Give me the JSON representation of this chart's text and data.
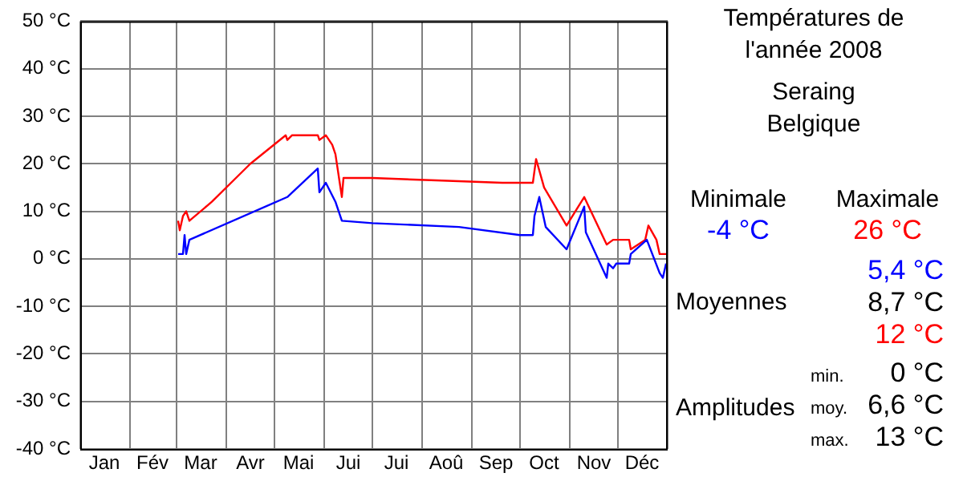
{
  "chart_data": {
    "type": "line",
    "title": "Températures de l'année 2008",
    "subtitle": "Seraing\nBelgique",
    "xlim": [
      "2008-01-01",
      "2009-01-01"
    ],
    "xticks": [
      {
        "value": "2008-01-01",
        "label": null
      },
      {
        "value": "2008-01-16",
        "label": "Jan"
      },
      {
        "value": "2008-02-01",
        "label": null
      },
      {
        "value": "2008-02-15",
        "label": "Fév"
      },
      {
        "value": "2008-03-01",
        "label": null
      },
      {
        "value": "2008-03-16",
        "label": "Mar"
      },
      {
        "value": "2008-04-01",
        "label": null
      },
      {
        "value": "2008-04-16",
        "label": "Avr"
      },
      {
        "value": "2008-05-01",
        "label": null
      },
      {
        "value": "2008-05-16",
        "label": "Mai"
      },
      {
        "value": "2008-06-01",
        "label": null
      },
      {
        "value": "2008-06-16",
        "label": "Jui"
      },
      {
        "value": "2008-07-01",
        "label": null
      },
      {
        "value": "2008-07-16",
        "label": "Jui"
      },
      {
        "value": "2008-08-01",
        "label": null
      },
      {
        "value": "2008-08-16",
        "label": "Aoû"
      },
      {
        "value": "2008-09-01",
        "label": null
      },
      {
        "value": "2008-09-16",
        "label": "Sep"
      },
      {
        "value": "2008-10-01",
        "label": null
      },
      {
        "value": "2008-10-16",
        "label": "Oct"
      },
      {
        "value": "2008-11-01",
        "label": null
      },
      {
        "value": "2008-11-16",
        "label": "Nov"
      },
      {
        "value": "2008-12-01",
        "label": null
      },
      {
        "value": "2008-12-16",
        "label": "Déc"
      },
      {
        "value": "2009-01-01",
        "label": null
      }
    ],
    "ylim": [
      -40,
      50
    ],
    "yticks": [
      {
        "value": -40,
        "label": "-40 °C"
      },
      {
        "value": -30,
        "label": "-30 °C"
      },
      {
        "value": -20,
        "label": "-20 °C"
      },
      {
        "value": -10,
        "label": "-10 °C"
      },
      {
        "value": 0,
        "label": "0 °C"
      },
      {
        "value": 10,
        "label": "10 °C"
      },
      {
        "value": 20,
        "label": "20 °C"
      },
      {
        "value": 30,
        "label": "30 °C"
      },
      {
        "value": 40,
        "label": "40 °C"
      },
      {
        "value": 50,
        "label": "50 °C"
      }
    ],
    "grid": true,
    "legend": false,
    "marker": "none",
    "line_style": "solid",
    "series": [
      {
        "color": "#0000ff",
        "x": [
          "2008-03-02",
          "2008-03-05",
          "2008-03-06",
          "2008-03-07",
          "2008-03-09",
          "2008-05-09",
          "2008-05-28",
          "2008-05-29",
          "2008-06-02",
          "2008-06-08",
          "2008-06-12",
          "2008-07-01",
          "2008-08-24",
          "2008-10-01",
          "2008-10-09",
          "2008-10-10",
          "2008-10-13",
          "2008-10-17",
          "2008-10-30",
          "2008-11-10",
          "2008-11-11",
          "2008-11-24",
          "2008-11-25",
          "2008-11-28",
          "2008-11-30",
          "2008-12-08",
          "2008-12-09",
          "2008-12-19",
          "2008-12-27",
          "2008-12-29",
          "2008-12-31"
        ],
        "values": [
          1,
          1,
          5,
          1,
          4,
          13,
          19,
          14,
          16,
          12,
          8,
          7.5,
          6.7,
          5,
          5,
          9,
          13,
          6.7,
          2,
          11,
          5.6,
          -4,
          -1,
          -2,
          -1,
          -1,
          1,
          4,
          -3,
          -4,
          -1
        ]
      },
      {
        "color": "#ff0000",
        "x": [
          "2008-03-02",
          "2008-03-03",
          "2008-03-05",
          "2008-03-07",
          "2008-03-09",
          "2008-03-23",
          "2008-04-16",
          "2008-05-08",
          "2008-05-09",
          "2008-05-12",
          "2008-05-28",
          "2008-05-29",
          "2008-06-02",
          "2008-06-06",
          "2008-06-08",
          "2008-06-12",
          "2008-06-13",
          "2008-07-01",
          "2008-08-10",
          "2008-09-20",
          "2008-10-09",
          "2008-10-11",
          "2008-10-16",
          "2008-10-30",
          "2008-11-10",
          "2008-11-24",
          "2008-11-28",
          "2008-12-08",
          "2008-12-09",
          "2008-12-18",
          "2008-12-20",
          "2008-12-25",
          "2008-12-27",
          "2008-12-31"
        ],
        "values": [
          8,
          6,
          9,
          10,
          8,
          12,
          20,
          26,
          25,
          26,
          26,
          25,
          26,
          24,
          22,
          13,
          17,
          17,
          16.5,
          16,
          16,
          21,
          15,
          7,
          13,
          3,
          4,
          4,
          2,
          4,
          7,
          4,
          1,
          1
        ]
      }
    ],
    "annotations": [
      "Minimale",
      "-4 °C",
      "Maximale",
      "26 °C",
      "Moyennes",
      "5,4 °C",
      "8,7 °C",
      "12 °C",
      "Amplitudes",
      "min.",
      "0 °C",
      "moy.",
      "6,6 °C",
      "max.",
      "13 °C"
    ]
  }
}
